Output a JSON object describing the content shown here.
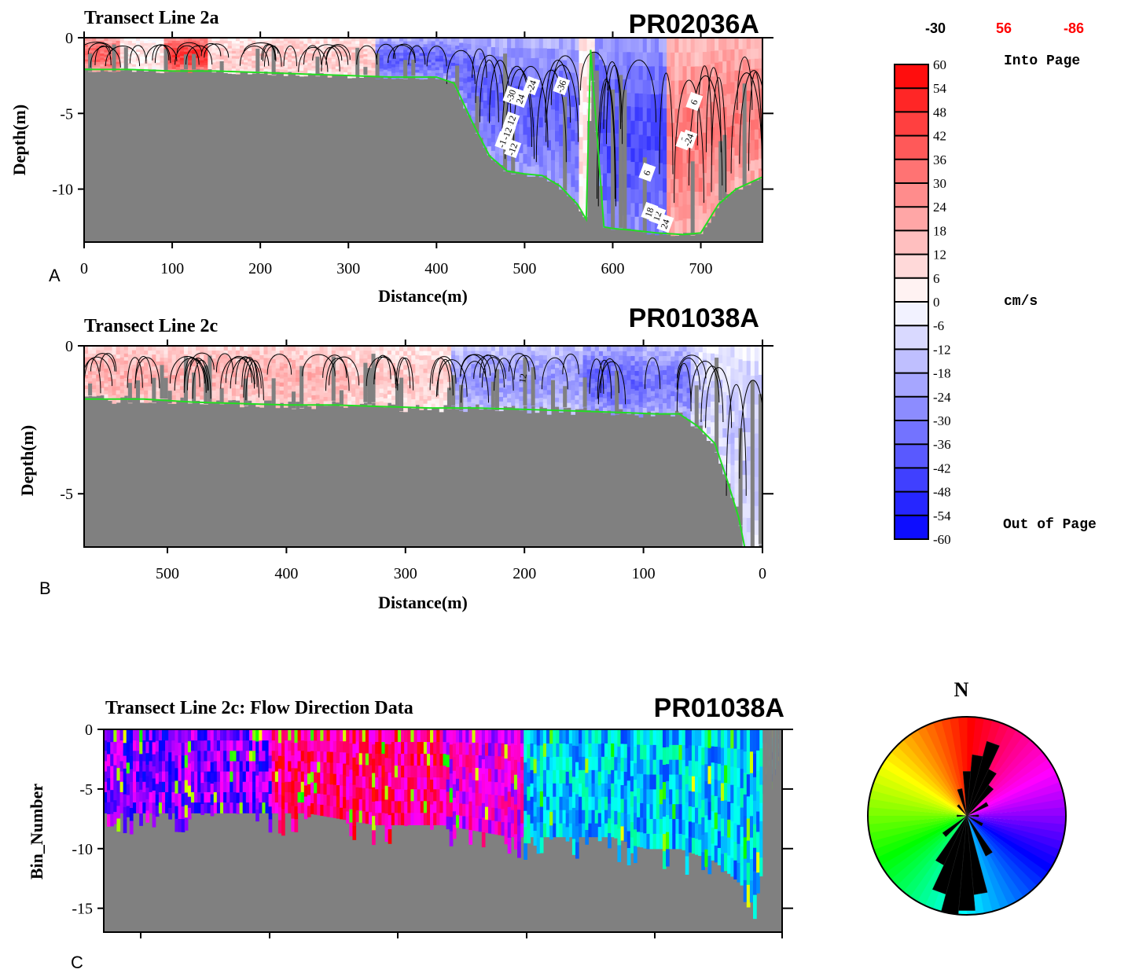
{
  "panels": [
    {
      "letter": "A",
      "title": "Transect Line 2a",
      "file_id": "PR02036A",
      "xlabel": "Distance(m)",
      "ylabel": "Depth(m)",
      "xticks": [
        "0",
        "100",
        "200",
        "300",
        "400",
        "500",
        "600",
        "700"
      ],
      "yticks": [
        "0",
        "-5",
        "-10"
      ],
      "contour_labels": [
        "-30",
        "24",
        "-36",
        "-12",
        "-18",
        "-12",
        "-24",
        "-12",
        "6",
        "-6",
        "6",
        "-24",
        "24",
        "12",
        "18"
      ]
    },
    {
      "letter": "B",
      "title": "Transect Line 2c",
      "file_id": "PR01038A",
      "xlabel": "Distance(m)",
      "ylabel": "Depth(m)",
      "xticks": [
        "500",
        "400",
        "300",
        "200",
        "100",
        "0"
      ],
      "yticks": [
        "0",
        "-5"
      ],
      "contour_labels": [
        "12"
      ]
    },
    {
      "letter": "C",
      "title": "Transect Line 2c: Flow Direction Data",
      "file_id": "PR01038A",
      "ylabel": "Bin_Number",
      "yticks": [
        "0",
        "-5",
        "-10",
        "-15"
      ]
    }
  ],
  "colorbar": {
    "header": [
      "-30",
      "56",
      "-86"
    ],
    "header_colors": [
      "#000000",
      "#ff0000",
      "#ff0000"
    ],
    "ticks": [
      "60",
      "54",
      "48",
      "42",
      "36",
      "30",
      "24",
      "18",
      "12",
      "6",
      "0",
      "-6",
      "-12",
      "-18",
      "-24",
      "-30",
      "-36",
      "-42",
      "-48",
      "-54",
      "-60"
    ],
    "top_label": "Into Page",
    "unit_label": "cm/s",
    "bottom_label": "Out of Page",
    "colors": {
      "positive": "#ff0000",
      "negative": "#0000ff",
      "zero": "#ffffff"
    }
  },
  "rose": {
    "north_label": "N"
  },
  "chart_data": [
    {
      "type": "heatmap",
      "title": "Transect Line 2a",
      "annotation": "PR02036A",
      "xlabel": "Distance(m)",
      "ylabel": "Depth(m)",
      "xlim": [
        0,
        770
      ],
      "ylim": [
        -13.5,
        0
      ],
      "xticks": [
        0,
        100,
        200,
        300,
        400,
        500,
        600,
        700
      ],
      "yticks": [
        0,
        -5,
        -10
      ],
      "value_unit": "cm/s",
      "bottom_profile": {
        "x": [
          0,
          50,
          100,
          150,
          200,
          250,
          300,
          350,
          400,
          420,
          440,
          460,
          480,
          500,
          520,
          540,
          560,
          570,
          575,
          590,
          600,
          620,
          650,
          680,
          700,
          720,
          740,
          770
        ],
        "depth": [
          -2.1,
          -2.1,
          -2.2,
          -2.2,
          -2.3,
          -2.4,
          -2.5,
          -2.6,
          -2.6,
          -3.0,
          -5.5,
          -7.8,
          -8.8,
          -9.0,
          -9.1,
          -9.8,
          -11.0,
          -12.0,
          -0.8,
          -12.5,
          -12.6,
          -12.7,
          -12.9,
          -13.0,
          -12.9,
          -11.0,
          -10.0,
          -9.2
        ]
      },
      "velocity_regions": [
        {
          "x": [
            0,
            40
          ],
          "mean": 36
        },
        {
          "x": [
            40,
            90
          ],
          "mean": 6
        },
        {
          "x": [
            90,
            140
          ],
          "mean": 48
        },
        {
          "x": [
            140,
            330
          ],
          "mean": 12
        },
        {
          "x": [
            330,
            560
          ],
          "mean": -36
        },
        {
          "x": [
            560,
            580
          ],
          "mean": 6
        },
        {
          "x": [
            580,
            660
          ],
          "mean": -42
        },
        {
          "x": [
            660,
            770
          ],
          "mean": 30
        }
      ]
    },
    {
      "type": "heatmap",
      "title": "Transect Line 2c",
      "annotation": "PR01038A",
      "xlabel": "Distance(m)",
      "ylabel": "Depth(m)",
      "xlim": [
        570,
        0
      ],
      "ylim": [
        -6.8,
        0
      ],
      "xticks": [
        500,
        400,
        300,
        200,
        100,
        0
      ],
      "yticks": [
        0,
        -5
      ],
      "value_unit": "cm/s",
      "bottom_profile": {
        "x": [
          570,
          520,
          480,
          440,
          400,
          360,
          320,
          280,
          240,
          200,
          160,
          120,
          90,
          70,
          55,
          40,
          30,
          20,
          15
        ],
        "depth": [
          -1.8,
          -1.8,
          -1.9,
          -1.95,
          -2.0,
          -2.0,
          -2.05,
          -2.1,
          -2.1,
          -2.15,
          -2.2,
          -2.25,
          -2.3,
          -2.3,
          -2.7,
          -3.3,
          -4.5,
          -5.8,
          -6.8
        ]
      },
      "velocity_regions": [
        {
          "x": [
            570,
            350
          ],
          "mean": 18
        },
        {
          "x": [
            350,
            260
          ],
          "mean": 12
        },
        {
          "x": [
            260,
            150
          ],
          "mean": -24
        },
        {
          "x": [
            150,
            100
          ],
          "mean": -36
        },
        {
          "x": [
            100,
            60
          ],
          "mean": -30
        },
        {
          "x": [
            60,
            0
          ],
          "mean": -12
        }
      ]
    },
    {
      "type": "heatmap",
      "title": "Transect Line 2c: Flow Direction Data",
      "annotation": "PR01038A",
      "ylabel": "Bin_Number",
      "ylim": [
        -17,
        0
      ],
      "yticks": [
        0,
        -5,
        -10,
        -15
      ],
      "color_encoding": "flow direction (hue, N = red)",
      "bin_bottom_profile": {
        "x_fraction": [
          0.0,
          0.1,
          0.2,
          0.3,
          0.4,
          0.5,
          0.6,
          0.7,
          0.75,
          0.8,
          0.85,
          0.9,
          0.92,
          0.94,
          0.96,
          0.97,
          0.98
        ],
        "bin": [
          -7,
          -7,
          -7,
          -7,
          -8,
          -8,
          -9,
          -9,
          -9,
          -10,
          -10,
          -11,
          -12,
          -13,
          -15,
          -12,
          -3
        ]
      }
    },
    {
      "type": "rose",
      "title": "",
      "north_label": "N",
      "dominant_direction_deg": [
        190,
        20
      ],
      "petals": [
        {
          "deg": 0,
          "r": 0.45
        },
        {
          "deg": 10,
          "r": 0.62
        },
        {
          "deg": 20,
          "r": 0.78
        },
        {
          "deg": 30,
          "r": 0.52
        },
        {
          "deg": 40,
          "r": 0.38
        },
        {
          "deg": 60,
          "r": 0.24
        },
        {
          "deg": 90,
          "r": 0.12
        },
        {
          "deg": 120,
          "r": 0.18
        },
        {
          "deg": 150,
          "r": 0.45
        },
        {
          "deg": 170,
          "r": 0.8
        },
        {
          "deg": 180,
          "r": 0.96
        },
        {
          "deg": 190,
          "r": 1.0
        },
        {
          "deg": 200,
          "r": 0.82
        },
        {
          "deg": 210,
          "r": 0.55
        },
        {
          "deg": 230,
          "r": 0.3
        },
        {
          "deg": 270,
          "r": 0.1
        },
        {
          "deg": 320,
          "r": 0.14
        },
        {
          "deg": 345,
          "r": 0.28
        }
      ]
    }
  ]
}
